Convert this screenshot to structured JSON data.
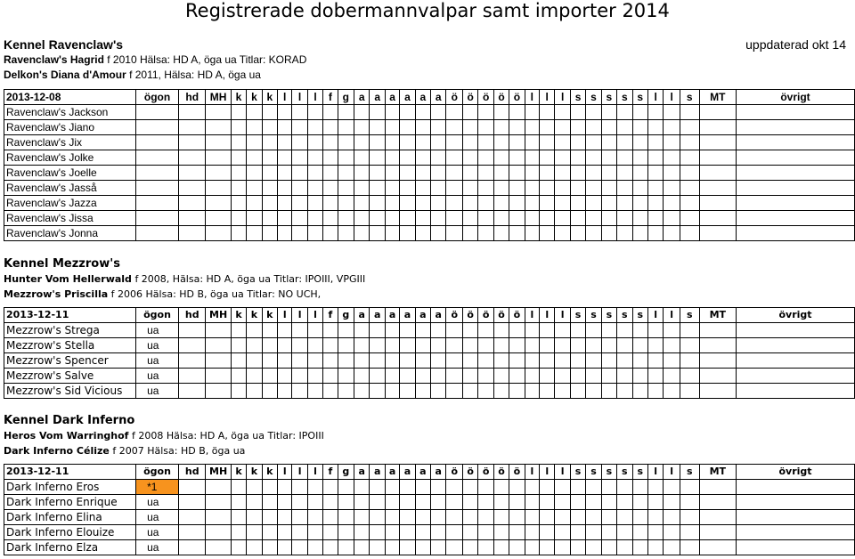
{
  "title": "Registrerade dobermannvalpar samt importer 2014",
  "columns": [
    "ögon",
    "hd",
    "MH",
    "k",
    "k",
    "k",
    "l",
    "l",
    "l",
    "f",
    "g",
    "a",
    "a",
    "a",
    "a",
    "a",
    "a",
    "ö",
    "ö",
    "ö",
    "ö",
    "ö",
    "l",
    "l",
    "l",
    "s",
    "s",
    "s",
    "s",
    "s",
    "l",
    "l",
    "s",
    "MT",
    "övrigt"
  ],
  "kennels": [
    {
      "name": "Kennel Ravenclaw's",
      "updated": "uppdaterad okt 14",
      "sire_name": "Ravenclaw's Hagrid",
      "sire_info": "f 2010 Hälsa: HD A, öga ua Titlar: KORAD",
      "dam_name": "Delkon's Diana d'Amour",
      "dam_info": "f 2011, Hälsa: HD A, öga ua",
      "date": "2013-12-08",
      "puppies": [
        {
          "name": "Ravenclaw's Jackson",
          "eye": ""
        },
        {
          "name": "Ravenclaw's Jiano",
          "eye": ""
        },
        {
          "name": "Ravenclaw's Jix",
          "eye": ""
        },
        {
          "name": "Ravenclaw's Jolke",
          "eye": ""
        },
        {
          "name": "Ravenclaw's Joelle",
          "eye": ""
        },
        {
          "name": "Ravenclaw's Jasså",
          "eye": ""
        },
        {
          "name": "Ravenclaw's Jazza",
          "eye": ""
        },
        {
          "name": "Ravenclaw's Jissa",
          "eye": ""
        },
        {
          "name": "Ravenclaw's Jonna",
          "eye": ""
        }
      ]
    },
    {
      "name": "Kennel Mezzrow's",
      "sire_name": "Hunter Vom Hellerwald",
      "sire_info": "f 2008, Hälsa: HD A, öga ua Titlar: IPOIII, VPGIII",
      "dam_name": "Mezzrow's Priscilla",
      "dam_info": "f 2006 Hälsa: HD B, öga ua Titlar: NO UCH,",
      "date": "2013-12-11",
      "puppies": [
        {
          "name": "Mezzrow's Strega",
          "eye": "ua"
        },
        {
          "name": "Mezzrow's Stella",
          "eye": "ua"
        },
        {
          "name": "Mezzrow's Spencer",
          "eye": "ua"
        },
        {
          "name": "Mezzrow's Salve",
          "eye": "ua"
        },
        {
          "name": "Mezzrow's Sid Vicious",
          "eye": "ua"
        }
      ]
    },
    {
      "name": "Kennel Dark Inferno",
      "sire_name": "Heros Vom Warringhof",
      "sire_info": "f 2008 Hälsa: HD A, öga ua Titlar: IPOIII",
      "dam_name": "Dark Inferno Célize",
      "dam_info": "f 2007 Hälsa: HD B, öga ua",
      "date": "2013-12-11",
      "puppies": [
        {
          "name": "Dark Inferno Eros",
          "eye": "*1",
          "highlight": true
        },
        {
          "name": "Dark Inferno Enrique",
          "eye": "ua"
        },
        {
          "name": "Dark Inferno Elina",
          "eye": "ua"
        },
        {
          "name": "Dark Inferno Elouize",
          "eye": "ua"
        },
        {
          "name": "Dark Inferno Elza",
          "eye": "ua"
        }
      ]
    }
  ],
  "colors": {
    "highlight": "#f7931e",
    "border": "#000000"
  }
}
